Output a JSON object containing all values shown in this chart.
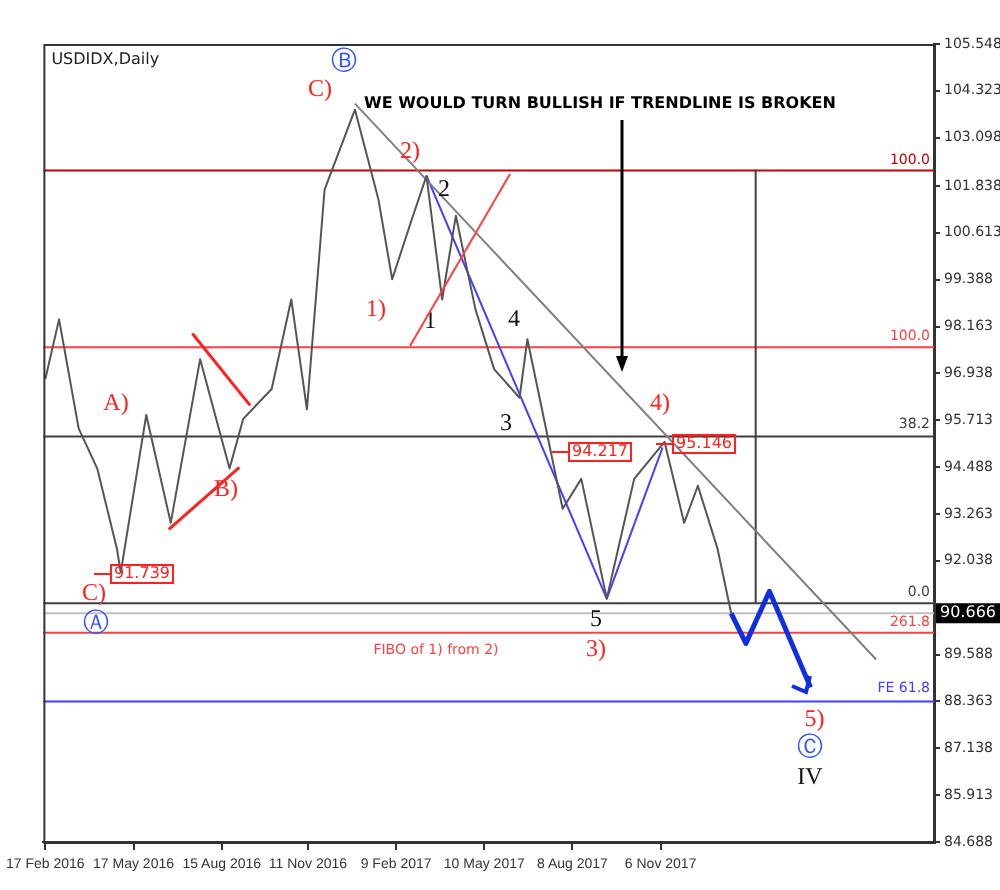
{
  "chart_data": {
    "type": "line",
    "title": "USDIDX,Daily",
    "series": [
      {
        "color": "#555555",
        "x": [
          "2016-02-17",
          "2016-03-02",
          "2016-03-22",
          "2016-04-10",
          "2016-04-30",
          "2016-05-04",
          "2016-05-30",
          "2016-06-24",
          "2016-07-24",
          "2016-08-23",
          "2016-09-06",
          "2016-10-05",
          "2016-10-25",
          "2016-11-10",
          "2016-11-28",
          "2016-12-29",
          "2017-01-22",
          "2017-02-05",
          "2017-02-25",
          "2017-03-12",
          "2017-03-28",
          "2017-04-11",
          "2017-05-01",
          "2017-05-20",
          "2017-06-15",
          "2017-06-23",
          "2017-07-29",
          "2017-08-17",
          "2017-09-12",
          "2017-10-10",
          "2017-11-10",
          "2017-11-30",
          "2017-12-14",
          "2018-01-03",
          "2018-01-17"
        ],
        "values": [
          96.79,
          98.35,
          95.5,
          94.45,
          92.36,
          91.739,
          95.85,
          93.03,
          97.31,
          94.45,
          95.75,
          96.53,
          98.87,
          96.0,
          101.74,
          103.83,
          101.48,
          99.4,
          100.96,
          102.1,
          98.87,
          101.06,
          98.61,
          97.05,
          96.3,
          97.83,
          93.4,
          94.18,
          91.05,
          94.18,
          95.146,
          93.03,
          94.0,
          92.36,
          90.666
        ]
      },
      {
        "type": "line",
        "color": "#808080",
        "x": [
          "2016-12-29",
          "2018-06-14"
        ],
        "values": [
          103.99,
          89.46
        ]
      },
      {
        "type": "line",
        "color": "#4040ff",
        "x": [
          "2017-03-12",
          "2017-09-12",
          "2017-11-08"
        ],
        "values": [
          102.1,
          91.05,
          95.0
        ]
      },
      {
        "type": "line",
        "color": "#ff2020",
        "x": [
          "2016-06-22",
          "2016-09-02"
        ],
        "values": [
          92.86,
          94.48
        ]
      },
      {
        "type": "line",
        "color": "#ff2020",
        "x": [
          "2016-07-16",
          "2016-09-13"
        ],
        "values": [
          97.98,
          96.1
        ]
      },
      {
        "type": "line",
        "color": "#404040",
        "x": [
          "2018-02-11",
          "2018-02-11"
        ],
        "values": [
          102.24,
          90.93
        ]
      },
      {
        "type": "line",
        "color": "#1030e0",
        "x": [
          "2018-01-17",
          "2018-02-01",
          "2018-02-25",
          "2018-04-08"
        ],
        "values": [
          90.666,
          89.88,
          91.24,
          88.73
        ]
      }
    ],
    "xlim": [
      "2016-02-15",
      "2018-08-12"
    ],
    "xticks": [
      {
        "value": "2016-02-17",
        "label": "17 Feb 2016"
      },
      {
        "value": "2016-05-17",
        "label": "17 May 2016"
      },
      {
        "value": "2016-08-15",
        "label": "15 Aug 2016"
      },
      {
        "value": "2016-11-11",
        "label": "11 Nov 2016"
      },
      {
        "value": "2017-02-09",
        "label": "9 Feb 2017"
      },
      {
        "value": "2017-05-10",
        "label": "10 May 2017"
      },
      {
        "value": "2017-08-08",
        "label": "8 Aug 2017"
      },
      {
        "value": "2017-11-06",
        "label": "6 Nov 2017"
      }
    ],
    "ylim": [
      84.688,
      105.548
    ],
    "yticks": [
      105.548,
      104.323,
      103.098,
      101.838,
      100.613,
      99.388,
      98.163,
      96.938,
      95.713,
      94.488,
      93.263,
      92.038,
      89.588,
      88.363,
      87.138,
      85.913,
      84.688
    ],
    "ref_lines": [
      {
        "axis": "y",
        "value": 102.24,
        "color": "#c00000"
      },
      {
        "axis": "y",
        "value": 97.62,
        "color": "#ff4040"
      },
      {
        "axis": "y",
        "value": 95.29,
        "color": "#404040"
      },
      {
        "axis": "y",
        "value": 90.93,
        "color": "#404040"
      },
      {
        "axis": "y",
        "value": 90.666,
        "label": "90.666",
        "color": "#c0c0c0"
      },
      {
        "axis": "y",
        "value": 90.16,
        "color": "#ff4040"
      },
      {
        "axis": "y",
        "value": 88.363,
        "color": "#4040ff"
      }
    ],
    "annotations": [
      "WE WOULD TURN BULLISH IF TRENDLINE IS BROKEN",
      "A)",
      "B)",
      "C)",
      "Ⓐ",
      "Ⓑ",
      "C)",
      "1)",
      "2)",
      {
        "text": "1",
        "x": "2017-03-28",
        "y": 98.87
      },
      "2",
      "3",
      "4",
      "5",
      "3)",
      "4)",
      {
        "text": "5)",
        "x": "2018-04-08",
        "y": 88.73
      },
      "Ⓒ",
      "IV",
      "91.739",
      "94.217",
      "95.146",
      "FIBO of 1) from 2)",
      "100.0",
      "100.0",
      "38.2",
      "0.0",
      "261.8",
      "FE 61.8"
    ],
    "legend": false,
    "grid": false,
    "marker": "none",
    "line_style": "solid"
  }
}
